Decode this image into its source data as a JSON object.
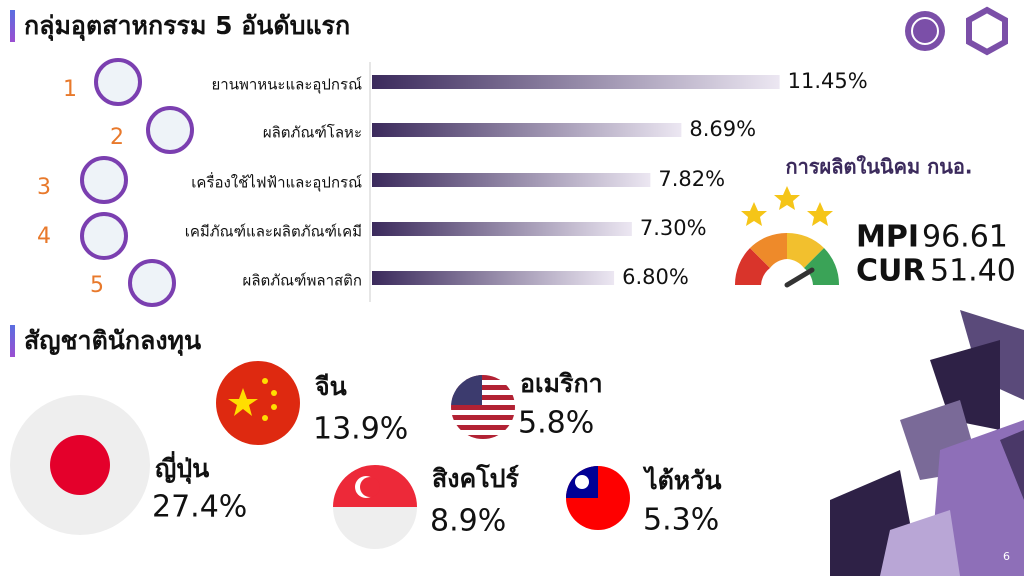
{
  "chart_data": {
    "type": "bar",
    "title": "กลุ่มอุตสาหกรรม 5 อันดับแรก",
    "ranks": [
      "1",
      "2",
      "3",
      "4",
      "5"
    ],
    "categories": [
      "ยานพาหนะและอุปกรณ์",
      "ผลิตภัณฑ์โลหะ",
      "เครื่องใช้ไฟฟ้าและอุปกรณ์",
      "เคมีภัณฑ์และผลิตภัณฑ์เคมี",
      "ผลิตภัณฑ์พลาสติก"
    ],
    "values": [
      11.45,
      8.69,
      7.82,
      7.3,
      6.8
    ],
    "value_labels": [
      "11.45%",
      "8.69%",
      "7.82%",
      "7.30%",
      "6.80%"
    ],
    "color": "#3b2a5c"
  },
  "production": {
    "title": "การผลิตในนิคม กนอ.",
    "items": [
      {
        "label": "MPI",
        "value": "96.61"
      },
      {
        "label": "CUR",
        "value": "51.40"
      }
    ]
  },
  "investors": {
    "title": "สัญชาตินักลงทุน",
    "items": [
      {
        "name": "ญี่ปุ่น",
        "share": "27.4%"
      },
      {
        "name": "จีน",
        "share": "13.9%"
      },
      {
        "name": "สิงคโปร์",
        "share": "8.9%"
      },
      {
        "name": "อเมริกา",
        "share": "5.8%"
      },
      {
        "name": "ไต้หวัน",
        "share": "5.3%"
      }
    ]
  },
  "page_number": "6"
}
